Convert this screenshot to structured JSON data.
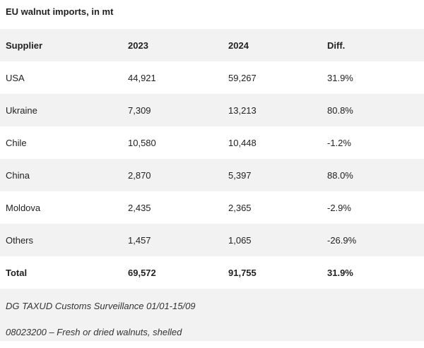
{
  "title": "EU walnut imports, in mt",
  "table": {
    "headers": [
      "Supplier",
      "2023",
      "2024",
      "Diff."
    ],
    "rows": [
      [
        "USA",
        "44,921",
        "59,267",
        "31.9%"
      ],
      [
        "Ukraine",
        "7,309",
        "13,213",
        "80.8%"
      ],
      [
        "Chile",
        "10,580",
        "10,448",
        "-1.2%"
      ],
      [
        "China",
        "2,870",
        "5,397",
        "88.0%"
      ],
      [
        "Moldova",
        "2,435",
        "2,365",
        "-2.9%"
      ],
      [
        "Others",
        "1,457",
        "1,065",
        "-26.9%"
      ]
    ],
    "total": [
      "Total",
      "69,572",
      "91,755",
      "31.9%"
    ]
  },
  "notes": [
    "DG TAXUD Customs Surveillance 01/01-15/09",
    "08023200 – Fresh or dried walnuts, shelled"
  ]
}
